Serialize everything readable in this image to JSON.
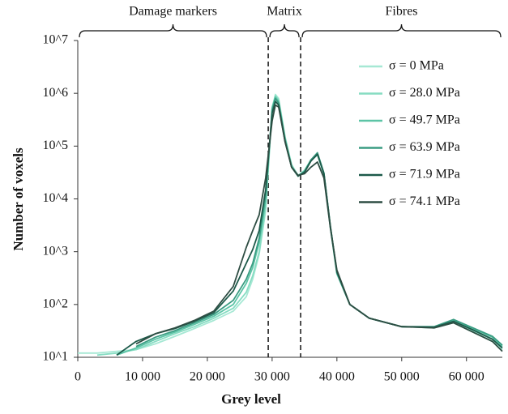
{
  "chart_data": {
    "type": "line",
    "x_label": "Grey level",
    "y_label": "Number of voxels",
    "log_y": true,
    "xlim": [
      0,
      65535
    ],
    "ylim": [
      10,
      10000000
    ],
    "xticks": [
      0,
      {
        "value": 10000,
        "label": "10 000"
      },
      {
        "value": 20000,
        "label": "20 000"
      },
      {
        "value": 30000,
        "label": "30 000"
      },
      {
        "value": 40000,
        "label": "40 000"
      },
      {
        "value": 50000,
        "label": "50 000"
      },
      {
        "value": 60000,
        "label": "60 000"
      }
    ],
    "yticks": [
      {
        "value": 10,
        "label": "10^1"
      },
      {
        "value": 100,
        "label": "10^2"
      },
      {
        "value": 1000,
        "label": "10^3"
      },
      {
        "value": 10000,
        "label": "10^4"
      },
      {
        "value": 100000,
        "label": "10^5"
      },
      {
        "value": 1000000,
        "label": "10^6"
      },
      {
        "value": 10000000,
        "label": "10^7"
      }
    ],
    "legend": "upper right",
    "regions": [
      {
        "label": "Damage markers",
        "from": 0,
        "to": 29400
      },
      {
        "label": "Matrix",
        "from": 29400,
        "to": 34400
      },
      {
        "label": "Fibres",
        "from": 34400,
        "to": 65535
      }
    ],
    "x": [
      0,
      3000,
      6000,
      9000,
      12000,
      15000,
      18000,
      21000,
      24000,
      26000,
      27000,
      28000,
      29000,
      30000,
      30500,
      31000,
      32000,
      33000,
      34000,
      35000,
      36000,
      37000,
      38000,
      39000,
      40000,
      42000,
      45000,
      50000,
      55000,
      58000,
      61000,
      64000,
      65535
    ],
    "series": [
      {
        "name": "σ = 0 MPa",
        "color": "#a6e8d4",
        "values": [
          12,
          12,
          13,
          14,
          18,
          25,
          35,
          50,
          75,
          140,
          300,
          900,
          6000,
          500000,
          950000,
          800000,
          150000,
          45000,
          28000,
          35000,
          55000,
          70000,
          30000,
          3000,
          400,
          100,
          55,
          38,
          36,
          45,
          30,
          20,
          14
        ]
      },
      {
        "name": "σ = 28.0 MPa",
        "color": "#86dcc2",
        "values": [
          null,
          11,
          12,
          14,
          20,
          28,
          38,
          55,
          85,
          170,
          350,
          1000,
          7000,
          550000,
          900000,
          750000,
          140000,
          43000,
          27000,
          34000,
          53000,
          68000,
          29000,
          2800,
          380,
          100,
          55,
          38,
          36,
          48,
          32,
          22,
          15
        ]
      },
      {
        "name": "σ = 49.7 MPa",
        "color": "#5cc4a6",
        "values": [
          null,
          null,
          11,
          15,
          22,
          30,
          42,
          60,
          100,
          250,
          500,
          1500,
          9000,
          520000,
          850000,
          700000,
          140000,
          42000,
          27000,
          34000,
          55000,
          72000,
          30000,
          2900,
          390,
          100,
          55,
          38,
          37,
          50,
          35,
          24,
          16
        ]
      },
      {
        "name": "σ = 63.9 MPa",
        "color": "#3a9c82",
        "values": [
          null,
          null,
          null,
          16,
          24,
          32,
          45,
          65,
          120,
          300,
          600,
          1800,
          12000,
          480000,
          800000,
          650000,
          130000,
          40000,
          27000,
          33000,
          55000,
          75000,
          31000,
          3000,
          400,
          100,
          55,
          38,
          38,
          52,
          36,
          25,
          17
        ]
      },
      {
        "name": "σ = 71.9 MPa",
        "color": "#1d5a4a",
        "values": [
          null,
          null,
          11,
          20,
          28,
          35,
          48,
          70,
          180,
          600,
          1100,
          2500,
          15000,
          420000,
          700000,
          600000,
          120000,
          40000,
          27000,
          32000,
          52000,
          70000,
          30000,
          3000,
          420,
          100,
          55,
          38,
          37,
          48,
          33,
          22,
          15
        ]
      },
      {
        "name": "σ = 74.1 MPa",
        "color": "#2e4d43",
        "values": [
          null,
          null,
          null,
          18,
          28,
          36,
          50,
          75,
          220,
          1200,
          2500,
          5000,
          25000,
          300000,
          600000,
          550000,
          120000,
          40000,
          28000,
          30000,
          40000,
          50000,
          25000,
          2800,
          450,
          100,
          55,
          38,
          36,
          45,
          30,
          20,
          13
        ]
      }
    ]
  }
}
